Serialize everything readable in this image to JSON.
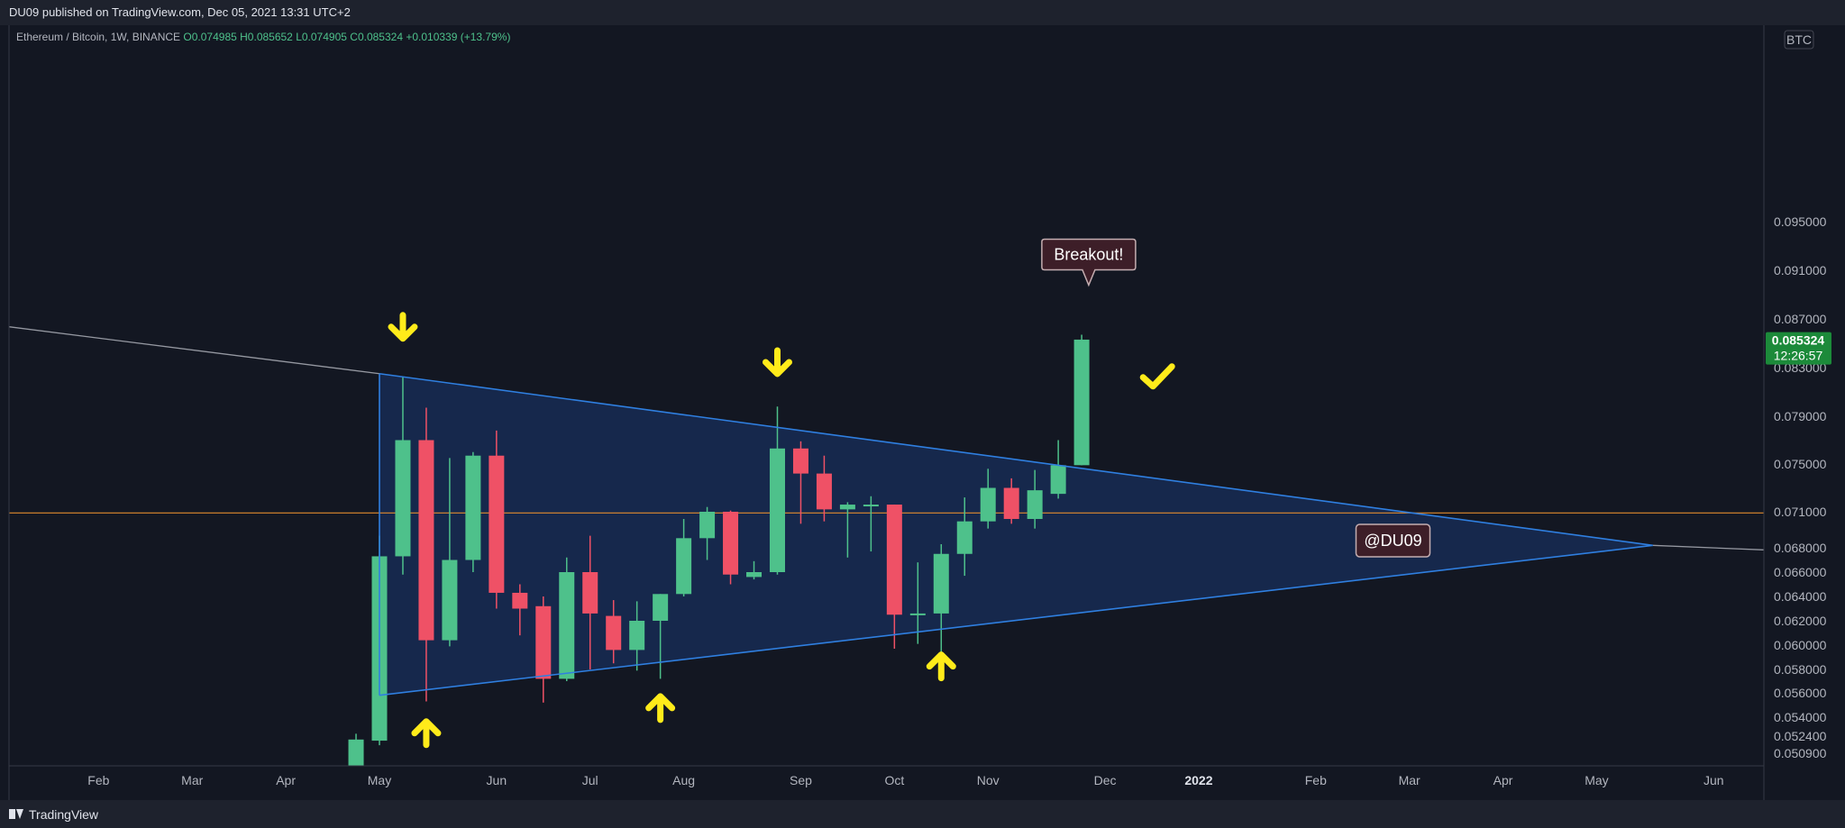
{
  "header": {
    "published_text": "DU09 published on TradingView.com, Dec 05, 2021 13:31 UTC+2"
  },
  "symbol_info": {
    "name": "Ethereum / Bitcoin, 1W, BINANCE",
    "open": "O0.074985",
    "high": "H0.085652",
    "low": "L0.074905",
    "close": "C0.085324",
    "change": "+0.010339 (+13.79%)"
  },
  "footer": {
    "brand": "TradingView"
  },
  "currency_label": "BTC",
  "last_price": {
    "value": "0.085324",
    "countdown": "12:26:57"
  },
  "annotations": {
    "breakout_label": "Breakout!",
    "author_label": "@DU09"
  },
  "colors": {
    "background": "#131722",
    "up_candle": "#4ec18b",
    "down_candle": "#ef5166",
    "triangle_fill": "#16294f",
    "triangle_line": "#2f7fe0",
    "horizontal_line": "#e08a2e",
    "arrow": "#ffeb1a",
    "price_badge": "#1c8a3a"
  },
  "chart_data": {
    "type": "candlestick",
    "symbol": "ETHBTC",
    "interval": "1W",
    "y_ticks": [
      0.0509,
      0.0524,
      0.054,
      0.056,
      0.058,
      0.06,
      0.062,
      0.064,
      0.066,
      0.068,
      0.071,
      0.075,
      0.079,
      0.083,
      0.087,
      0.091,
      0.095
    ],
    "y_tick_labels": [
      "0.050900",
      "0.052400",
      "0.054000",
      "0.056000",
      "0.058000",
      "0.060000",
      "0.062000",
      "0.064000",
      "0.066000",
      "0.068000",
      "0.071000",
      "0.075000",
      "0.079000",
      "0.083000",
      "0.087000",
      "0.091000",
      "0.095000"
    ],
    "x_ticks": [
      {
        "label": "Feb",
        "w": -12
      },
      {
        "label": "Mar",
        "w": -8
      },
      {
        "label": "Apr",
        "w": -4
      },
      {
        "label": "May",
        "w": 0
      },
      {
        "label": "Jun",
        "w": 5
      },
      {
        "label": "Jul",
        "w": 9
      },
      {
        "label": "Aug",
        "w": 13
      },
      {
        "label": "Sep",
        "w": 18
      },
      {
        "label": "Oct",
        "w": 22
      },
      {
        "label": "Nov",
        "w": 26
      },
      {
        "label": "Dec",
        "w": 31
      },
      {
        "label": "2022",
        "w": 35,
        "bold": true
      },
      {
        "label": "Feb",
        "w": 40
      },
      {
        "label": "Mar",
        "w": 44
      },
      {
        "label": "Apr",
        "w": 48
      },
      {
        "label": "May",
        "w": 52
      },
      {
        "label": "Jun",
        "w": 57
      }
    ],
    "candles": [
      {
        "w": -1,
        "o": 0.0484,
        "h": 0.0526,
        "l": 0.0484,
        "c": 0.0521
      },
      {
        "w": 0,
        "o": 0.052,
        "h": 0.069,
        "l": 0.0516,
        "c": 0.0673
      },
      {
        "w": 1,
        "o": 0.0673,
        "h": 0.0822,
        "l": 0.0658,
        "c": 0.077
      },
      {
        "w": 2,
        "o": 0.077,
        "h": 0.0797,
        "l": 0.0553,
        "c": 0.0604
      },
      {
        "w": 3,
        "o": 0.0604,
        "h": 0.0755,
        "l": 0.0599,
        "c": 0.067
      },
      {
        "w": 4,
        "o": 0.067,
        "h": 0.076,
        "l": 0.066,
        "c": 0.0757
      },
      {
        "w": 5,
        "o": 0.0757,
        "h": 0.0778,
        "l": 0.063,
        "c": 0.0643
      },
      {
        "w": 6,
        "o": 0.0643,
        "h": 0.065,
        "l": 0.0608,
        "c": 0.063
      },
      {
        "w": 7,
        "o": 0.0632,
        "h": 0.064,
        "l": 0.0552,
        "c": 0.0572
      },
      {
        "w": 8,
        "o": 0.0572,
        "h": 0.0672,
        "l": 0.057,
        "c": 0.066
      },
      {
        "w": 9,
        "o": 0.066,
        "h": 0.069,
        "l": 0.058,
        "c": 0.0626
      },
      {
        "w": 10,
        "o": 0.0624,
        "h": 0.0637,
        "l": 0.0585,
        "c": 0.0596
      },
      {
        "w": 11,
        "o": 0.0596,
        "h": 0.0636,
        "l": 0.0579,
        "c": 0.062
      },
      {
        "w": 12,
        "o": 0.062,
        "h": 0.0642,
        "l": 0.0572,
        "c": 0.0642
      },
      {
        "w": 13,
        "o": 0.0642,
        "h": 0.0704,
        "l": 0.064,
        "c": 0.0688
      },
      {
        "w": 14,
        "o": 0.0688,
        "h": 0.0714,
        "l": 0.067,
        "c": 0.071
      },
      {
        "w": 15,
        "o": 0.071,
        "h": 0.0711,
        "l": 0.065,
        "c": 0.0658
      },
      {
        "w": 16,
        "o": 0.0656,
        "h": 0.0669,
        "l": 0.0654,
        "c": 0.066
      },
      {
        "w": 17,
        "o": 0.066,
        "h": 0.0798,
        "l": 0.0658,
        "c": 0.0763
      },
      {
        "w": 18,
        "o": 0.0763,
        "h": 0.0769,
        "l": 0.07,
        "c": 0.0742
      },
      {
        "w": 19,
        "o": 0.0742,
        "h": 0.0757,
        "l": 0.0702,
        "c": 0.0712
      },
      {
        "w": 20,
        "o": 0.0712,
        "h": 0.0718,
        "l": 0.0672,
        "c": 0.0716
      },
      {
        "w": 21,
        "o": 0.0716,
        "h": 0.0723,
        "l": 0.0677,
        "c": 0.0716
      },
      {
        "w": 22,
        "o": 0.0716,
        "h": 0.0716,
        "l": 0.0597,
        "c": 0.0625
      },
      {
        "w": 23,
        "o": 0.0625,
        "h": 0.0668,
        "l": 0.0601,
        "c": 0.0626
      },
      {
        "w": 24,
        "o": 0.0626,
        "h": 0.0683,
        "l": 0.0594,
        "c": 0.0675
      },
      {
        "w": 25,
        "o": 0.0675,
        "h": 0.0722,
        "l": 0.0657,
        "c": 0.0702
      },
      {
        "w": 26,
        "o": 0.0702,
        "h": 0.0746,
        "l": 0.0696,
        "c": 0.073
      },
      {
        "w": 27,
        "o": 0.073,
        "h": 0.0738,
        "l": 0.07,
        "c": 0.0704
      },
      {
        "w": 28,
        "o": 0.0704,
        "h": 0.0745,
        "l": 0.0696,
        "c": 0.0728
      },
      {
        "w": 29,
        "o": 0.0725,
        "h": 0.077,
        "l": 0.0721,
        "c": 0.0749
      },
      {
        "w": 30,
        "o": 0.0749,
        "h": 0.0857,
        "l": 0.0749,
        "c": 0.0853
      }
    ],
    "horizontal_line": 0.0709,
    "triangle": {
      "apex": {
        "w": 54.4,
        "price": 0.0682
      },
      "upper_start": {
        "w": 0,
        "price": 0.0825
      },
      "lower_start": {
        "w": 0,
        "price": 0.0558
      },
      "trend_line_start": {
        "w": -16,
        "price": 0.0864
      }
    },
    "arrows": [
      {
        "dir": "down",
        "w": 1,
        "price": 0.0862
      },
      {
        "dir": "down",
        "w": 17,
        "price": 0.0833
      },
      {
        "dir": "up",
        "w": 2,
        "price": 0.0528
      },
      {
        "dir": "up",
        "w": 12,
        "price": 0.0549
      },
      {
        "dir": "up",
        "w": 24,
        "price": 0.0584
      }
    ],
    "checkmark": {
      "w": 33.2,
      "price": 0.0822
    },
    "breakout_callout": {
      "w": 30.3,
      "price": 0.0923
    },
    "author_callout": {
      "w": 43.3,
      "price": 0.0686
    }
  }
}
